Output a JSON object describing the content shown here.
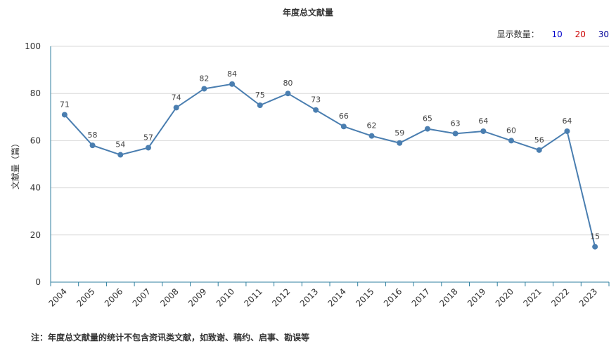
{
  "header": {
    "title": "年度总文献量",
    "display_count_label": "显示数量：",
    "display_options": [
      {
        "label": "10",
        "color": "#0000cc"
      },
      {
        "label": "20",
        "color": "#cc0000"
      },
      {
        "label": "30",
        "color": "#000099"
      }
    ]
  },
  "footer": {
    "note": "注：年度总文献量的统计不包含资讯类文献，如致谢、稿约、启事、勘误等"
  },
  "colors": {
    "line": "#4a7eb0",
    "axis": "#2f7f9f",
    "grid": "#d9d9d9"
  },
  "chart_data": {
    "type": "line",
    "title": "年度总文献量",
    "ylabel": "文献量（篇）",
    "xlabel": "",
    "ylim": [
      0,
      100
    ],
    "yticks": [
      0,
      20,
      40,
      60,
      80,
      100
    ],
    "grid": true,
    "categories": [
      "2004",
      "2005",
      "2006",
      "2007",
      "2008",
      "2009",
      "2010",
      "2011",
      "2012",
      "2013",
      "2014",
      "2015",
      "2016",
      "2017",
      "2018",
      "2019",
      "2020",
      "2021",
      "2022",
      "2023"
    ],
    "series": [
      {
        "values": [
          71,
          58,
          54,
          57,
          74,
          82,
          84,
          75,
          80,
          73,
          66,
          62,
          59,
          65,
          63,
          64,
          60,
          56,
          64,
          15
        ]
      }
    ]
  }
}
